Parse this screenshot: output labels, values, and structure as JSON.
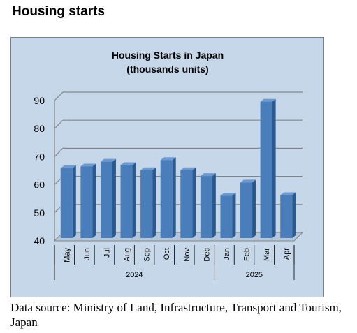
{
  "page": {
    "heading": "Housing starts",
    "source_note": "Data source: Ministry of Land, Infrastructure, Transport and Tourism, Japan"
  },
  "chart_data": {
    "type": "bar",
    "title": "Housing Starts in Japan",
    "subtitle": "(thousands units)",
    "categories": [
      "May",
      "Jun",
      "Jul",
      "Aug",
      "Sep",
      "Oct",
      "Nov",
      "Dec",
      "Jan",
      "Feb",
      "Mar",
      "Apr"
    ],
    "category_groups": [
      {
        "label": "2024",
        "count": 8
      },
      {
        "label": "2025",
        "count": 4
      }
    ],
    "series": [
      {
        "values": [
          65.9,
          66.5,
          68.2,
          67.0,
          65.2,
          68.8,
          65.2,
          63.1,
          56.1,
          60.8,
          89.6,
          56.3
        ]
      }
    ],
    "ylim": [
      40,
      90
    ],
    "yticks": [
      40,
      50,
      60,
      70,
      80,
      90
    ],
    "grid": true,
    "three_d": true,
    "colors": {
      "bar_front": "#4a7ebb",
      "bar_side": "#2c5a8f",
      "bar_top": "#6f9ad0",
      "background": "#c6d7ea",
      "gridline": "#868686"
    }
  }
}
